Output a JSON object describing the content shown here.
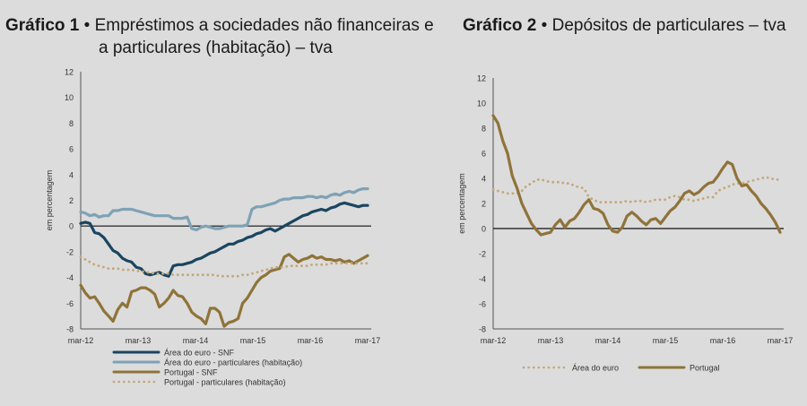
{
  "chart_data": [
    {
      "type": "line",
      "title_number": "Gráfico 1",
      "title_line1": "Empréstimos a sociedades não financeiras e",
      "title_line2": "a particulares (habitação) – tva",
      "ylabel": "em percentagem",
      "ylim": [
        -8,
        12
      ],
      "yticks": [
        "12",
        "10",
        "8",
        "6",
        "4",
        "2",
        "0",
        "-2",
        "-4",
        "-6",
        "-8"
      ],
      "xticks": [
        "mar-12",
        "mar-13",
        "mar-14",
        "mar-15",
        "mar-16",
        "mar-17"
      ],
      "xlim": [
        0,
        62
      ],
      "legend_position": "bottom",
      "series": [
        {
          "name": "Área do euro - SNF",
          "color": "#1b4560",
          "style": "solid",
          "values": [
            0.2,
            0.3,
            0.2,
            -0.5,
            -0.6,
            -0.9,
            -1.4,
            -1.9,
            -2.1,
            -2.5,
            -2.7,
            -2.8,
            -3.2,
            -3.3,
            -3.7,
            -3.8,
            -3.7,
            -3.6,
            -3.8,
            -3.9,
            -3.1,
            -3.0,
            -3.0,
            -2.9,
            -2.8,
            -2.6,
            -2.5,
            -2.3,
            -2.1,
            -2.0,
            -1.8,
            -1.6,
            -1.4,
            -1.4,
            -1.2,
            -1.1,
            -0.9,
            -0.8,
            -0.6,
            -0.5,
            -0.3,
            -0.2,
            -0.4,
            -0.2,
            0.0,
            0.2,
            0.4,
            0.6,
            0.8,
            0.9,
            1.1,
            1.2,
            1.3,
            1.2,
            1.4,
            1.5,
            1.7,
            1.8,
            1.7,
            1.6,
            1.5,
            1.6,
            1.6
          ]
        },
        {
          "name": "Área do euro - particulares (habitação)",
          "color": "#7ea2b6",
          "style": "solid",
          "values": [
            1.1,
            1.0,
            0.8,
            0.9,
            0.7,
            0.8,
            0.8,
            1.2,
            1.2,
            1.3,
            1.3,
            1.3,
            1.2,
            1.1,
            1.0,
            0.9,
            0.8,
            0.8,
            0.8,
            0.8,
            0.6,
            0.6,
            0.6,
            0.7,
            -0.2,
            -0.3,
            -0.1,
            0.0,
            -0.1,
            -0.2,
            -0.2,
            -0.1,
            0.0,
            0.0,
            0.0,
            0.0,
            0.1,
            1.3,
            1.5,
            1.5,
            1.6,
            1.7,
            1.8,
            2.0,
            2.1,
            2.1,
            2.2,
            2.2,
            2.2,
            2.3,
            2.3,
            2.2,
            2.3,
            2.2,
            2.4,
            2.5,
            2.4,
            2.6,
            2.7,
            2.6,
            2.8,
            2.9,
            2.9
          ]
        },
        {
          "name": "Portugal - SNF",
          "color": "#8f7339",
          "style": "solid",
          "values": [
            -4.6,
            -5.2,
            -5.6,
            -5.5,
            -6.0,
            -6.6,
            -7.0,
            -7.4,
            -6.5,
            -6.0,
            -6.3,
            -5.1,
            -5.0,
            -4.8,
            -4.8,
            -5.0,
            -5.3,
            -6.3,
            -6.0,
            -5.6,
            -5.0,
            -5.4,
            -5.5,
            -6.0,
            -6.7,
            -7.0,
            -7.2,
            -7.6,
            -6.4,
            -6.4,
            -6.7,
            -7.8,
            -7.5,
            -7.4,
            -7.2,
            -6.0,
            -5.6,
            -5.0,
            -4.4,
            -4.0,
            -3.8,
            -3.5,
            -3.4,
            -3.3,
            -2.4,
            -2.2,
            -2.5,
            -2.8,
            -2.6,
            -2.5,
            -2.3,
            -2.5,
            -2.4,
            -2.6,
            -2.6,
            -2.7,
            -2.6,
            -2.8,
            -2.7,
            -2.9,
            -2.7,
            -2.5,
            -2.3
          ]
        },
        {
          "name": "Portugal - particulares (habitação)",
          "color": "#c4a77b",
          "style": "dotted",
          "values": [
            -2.4,
            -2.6,
            -2.8,
            -3.0,
            -3.1,
            -3.2,
            -3.3,
            -3.3,
            -3.3,
            -3.4,
            -3.4,
            -3.4,
            -3.5,
            -3.5,
            -3.6,
            -3.6,
            -3.7,
            -3.7,
            -3.7,
            -3.7,
            -3.8,
            -3.8,
            -3.8,
            -3.8,
            -3.8,
            -3.8,
            -3.8,
            -3.8,
            -3.8,
            -3.8,
            -3.9,
            -3.9,
            -3.9,
            -3.9,
            -3.9,
            -3.8,
            -3.8,
            -3.7,
            -3.6,
            -3.5,
            -3.4,
            -3.3,
            -3.2,
            -3.2,
            -3.2,
            -3.1,
            -3.1,
            -3.1,
            -3.1,
            -3.1,
            -3.0,
            -3.0,
            -3.0,
            -3.0,
            -2.9,
            -2.9,
            -2.9,
            -2.9,
            -2.9,
            -2.9,
            -2.9,
            -2.9,
            -2.9
          ]
        }
      ]
    },
    {
      "type": "line",
      "title_number": "Gráfico 2",
      "title_line1": "Depósitos de particulares – tva",
      "ylabel": "em percentagem",
      "ylim": [
        -8,
        12
      ],
      "yticks": [
        "12",
        "10",
        "8",
        "6",
        "4",
        "2",
        "0",
        "-2",
        "-4",
        "-6",
        "-8"
      ],
      "xticks": [
        "mar-12",
        "mar-13",
        "mar-14",
        "mar-15",
        "mar-16",
        "mar-17"
      ],
      "xlim": [
        0,
        60
      ],
      "legend_position": "bottom",
      "series": [
        {
          "name": "Área do euro",
          "color": "#c4a77b",
          "style": "dotted",
          "values": [
            3.1,
            3.0,
            2.9,
            2.8,
            2.8,
            2.8,
            3.0,
            3.4,
            3.6,
            3.9,
            3.9,
            3.8,
            3.7,
            3.7,
            3.7,
            3.6,
            3.6,
            3.4,
            3.3,
            3.2,
            2.5,
            2.3,
            2.1,
            2.1,
            2.1,
            2.1,
            2.1,
            2.1,
            2.2,
            2.1,
            2.2,
            2.2,
            2.1,
            2.2,
            2.3,
            2.3,
            2.3,
            2.5,
            2.6,
            2.5,
            2.3,
            2.3,
            2.2,
            2.3,
            2.4,
            2.5,
            2.5,
            3.0,
            3.2,
            3.3,
            3.5,
            3.6,
            3.6,
            3.7,
            3.8,
            3.9,
            4.0,
            4.1,
            4.0,
            3.9,
            3.9
          ]
        },
        {
          "name": "Portugal",
          "color": "#8f7339",
          "style": "solid",
          "values": [
            9.0,
            8.4,
            7.0,
            6.0,
            4.2,
            3.2,
            2.0,
            1.2,
            0.4,
            -0.1,
            -0.5,
            -0.4,
            -0.3,
            0.3,
            0.7,
            0.1,
            0.6,
            0.8,
            1.3,
            1.9,
            2.3,
            1.6,
            1.5,
            1.2,
            0.3,
            -0.2,
            -0.3,
            0.1,
            1.0,
            1.3,
            1.0,
            0.6,
            0.3,
            0.7,
            0.8,
            0.4,
            0.9,
            1.4,
            1.7,
            2.2,
            2.8,
            3.0,
            2.7,
            2.9,
            3.3,
            3.6,
            3.7,
            4.2,
            4.8,
            5.3,
            5.1,
            4.0,
            3.4,
            3.5,
            3.0,
            2.6,
            2.0,
            1.6,
            1.1,
            0.5,
            -0.3
          ]
        }
      ]
    }
  ]
}
